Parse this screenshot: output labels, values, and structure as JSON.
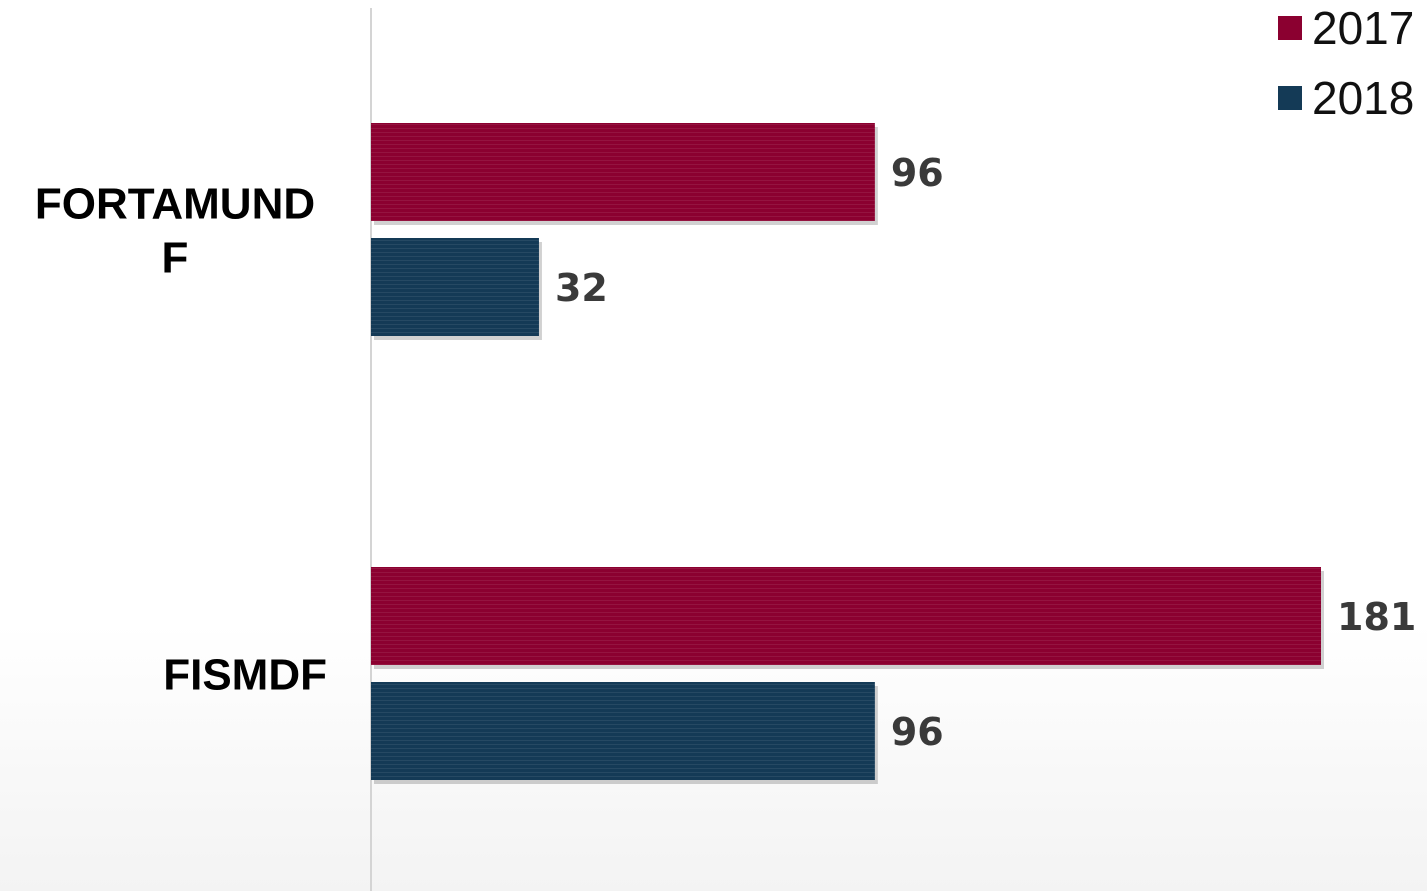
{
  "chart_data": {
    "type": "bar",
    "orientation": "horizontal",
    "categories": [
      [
        "FORTAMUND",
        "F"
      ],
      [
        "FISMDF"
      ]
    ],
    "series": [
      {
        "name": "2017",
        "color": "#8b0030",
        "values": [
          96,
          181
        ]
      },
      {
        "name": "2018",
        "color": "#143a56",
        "values": [
          32,
          96
        ]
      }
    ],
    "xlim": [
      0,
      181
    ],
    "grid": false,
    "legend": "top-right"
  }
}
